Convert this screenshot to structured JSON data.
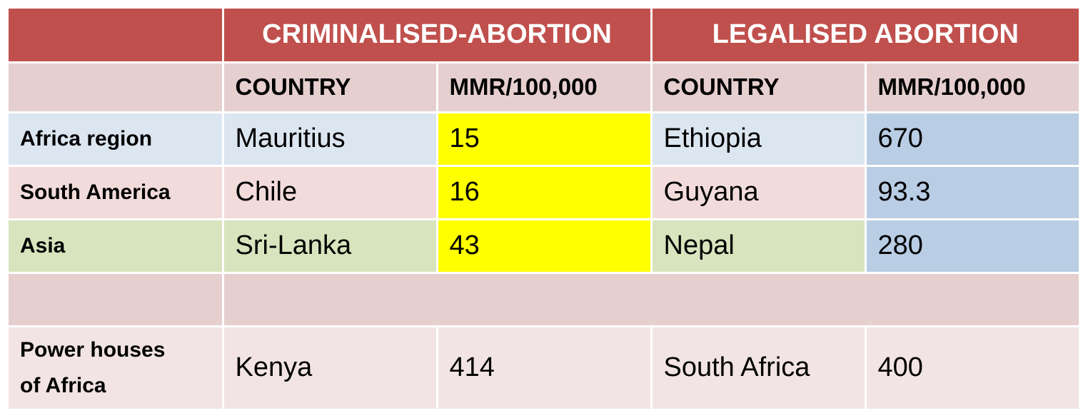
{
  "header": {
    "group_criminalised": "CRIMINALISED-ABORTION",
    "group_legalised": "LEGALISED ABORTION"
  },
  "subheader": {
    "country_1": "COUNTRY",
    "mmr_1": "MMR/100,000",
    "country_2": "COUNTRY",
    "mmr_2": "MMR/100,000"
  },
  "rows": [
    {
      "region": "Africa region",
      "crim_country": "Mauritius",
      "crim_mmr": "15",
      "legal_country": "Ethiopia",
      "legal_mmr": "670"
    },
    {
      "region": "South America",
      "crim_country": "Chile",
      "crim_mmr": "16",
      "legal_country": "Guyana",
      "legal_mmr": "93.3"
    },
    {
      "region": "Asia",
      "crim_country": "Sri-Lanka",
      "crim_mmr": "43",
      "legal_country": "Nepal",
      "legal_mmr": "280"
    }
  ],
  "power_row": {
    "region_line1": "Power houses",
    "region_line2": "of Africa",
    "crim_country": "Kenya",
    "crim_mmr": "414",
    "legal_country": "South Africa",
    "legal_mmr": "400"
  },
  "colors": {
    "header": "#c0504d",
    "subheader": "#e6cfcf",
    "africa_row": "#dbe6f1",
    "south_america_row": "#f2dcdb",
    "asia_row": "#d7e4bd",
    "crim_mmr_highlight": "#ffff00",
    "legal_mmr_column": "#b9cde5",
    "power_row": "#f2e4e4"
  }
}
